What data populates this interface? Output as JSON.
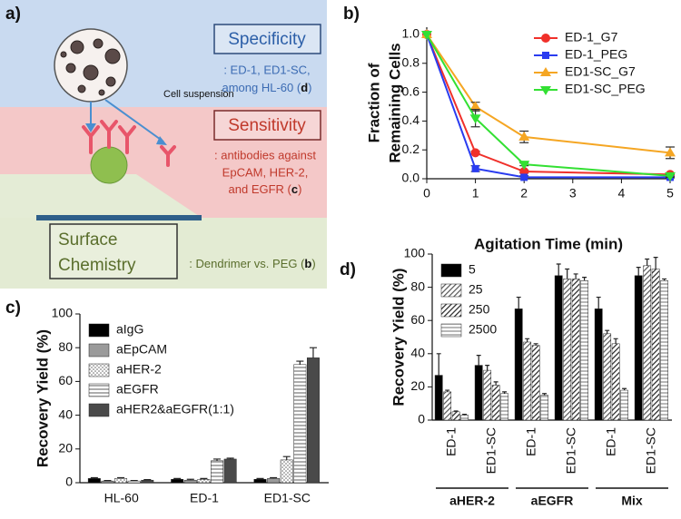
{
  "diagram": {
    "panel": "a)",
    "cell_suspension": "Cell suspension",
    "specificity": {
      "title": "Specificity",
      "lines": [
        ": ED-1, ED1-SC,",
        "among HL-60 ("
      ],
      "ref": "d",
      "end": ")"
    },
    "sensitivity": {
      "title": "Sensitivity",
      "lines": [
        ": antibodies against",
        "EpCAM, HER-2,",
        "and EGFR ("
      ],
      "ref": "c",
      "end": ")"
    },
    "surface": {
      "title": [
        "Surface",
        "Chemistry"
      ],
      "lines": [
        ": Dendrimer vs. PEG ("
      ],
      "ref": "b",
      "end": ")"
    }
  },
  "chart_data": [
    {
      "panel": "b)",
      "type": "line",
      "x": [
        0,
        1,
        2,
        5
      ],
      "xlim": [
        0,
        5
      ],
      "xticks": [
        0,
        1,
        2,
        3,
        4,
        5
      ],
      "ylim": [
        0,
        1.05
      ],
      "yticks": [
        {
          "value": 0,
          "label": "0.0"
        },
        0.2,
        0.4,
        0.6,
        0.8,
        {
          "value": 1,
          "label": "1.0"
        }
      ],
      "xlabel": "Agitation Time (min)",
      "ylabel": [
        "Fraction of",
        "Remaining Cells"
      ],
      "legend": "upper right",
      "series": [
        {
          "name": "ED-1_G7",
          "color": "#f0302a",
          "marker": "circle",
          "values": [
            1,
            0.18,
            0.05,
            0.03
          ],
          "errors": [
            null,
            0.01,
            0.01,
            0.01
          ]
        },
        {
          "name": "ED-1_PEG",
          "color": "#2a3cf0",
          "marker": "square",
          "values": [
            1,
            0.07,
            0.01,
            0.01
          ],
          "errors": [
            null,
            0.02,
            0.01,
            0.005
          ]
        },
        {
          "name": "ED1-SC_G7",
          "color": "#f5a623",
          "marker": "triangle",
          "values": [
            1,
            0.5,
            0.29,
            0.18
          ],
          "errors": [
            null,
            0.03,
            0.04,
            0.04
          ]
        },
        {
          "name": "ED1-SC_PEG",
          "color": "#33e033",
          "marker": "triangle-down",
          "values": [
            1,
            0.42,
            0.1,
            0.02
          ],
          "errors": [
            null,
            0.06,
            0.01,
            0.01
          ]
        }
      ]
    },
    {
      "panel": "c)",
      "type": "bar",
      "categories": [
        "HL-60",
        "ED-1",
        "ED1-SC"
      ],
      "ylim": [
        0,
        100
      ],
      "yticks": [
        0,
        20,
        40,
        60,
        80,
        100
      ],
      "ylabel": [
        "Recovery Yield (%)"
      ],
      "legend": "upper left",
      "series": [
        {
          "name": "aIgG",
          "color": "#000000",
          "values": [
            2.5,
            2,
            2
          ],
          "errors": [
            0.5,
            0.5,
            0.5
          ]
        },
        {
          "name": "aEpCAM",
          "color": "#9a9a9a",
          "values": [
            1,
            1.5,
            2.5
          ],
          "errors": [
            0.3,
            0.5,
            0.5
          ]
        },
        {
          "name": "aHER-2",
          "color": "#666666",
          "pattern": "dots",
          "values": [
            2.5,
            2,
            13.5
          ],
          "errors": [
            0.5,
            0.5,
            2
          ]
        },
        {
          "name": "aEGFR",
          "color": "#8a8a8a",
          "pattern": "hlines",
          "values": [
            1,
            13,
            70
          ],
          "errors": [
            0.3,
            1,
            2
          ]
        },
        {
          "name": "aHER2&aEGFR(1:1)",
          "color": "#4a4a4a",
          "values": [
            1.5,
            14,
            74
          ],
          "errors": [
            0.3,
            0.5,
            6
          ]
        }
      ]
    },
    {
      "panel": "d)",
      "type": "bar",
      "categories": [
        "ED-1",
        "ED1-SC",
        "ED-1",
        "ED1-SC",
        "ED-1",
        "ED1-SC"
      ],
      "groups": [
        "aHER-2",
        "aEGFR",
        "Mix"
      ],
      "ylim": [
        0,
        100
      ],
      "yticks": [
        0,
        20,
        40,
        60,
        80,
        100
      ],
      "ylabel": [
        "Recovery Yield (%)"
      ],
      "legend": "upper left",
      "series": [
        {
          "name": "5",
          "color": "#000000",
          "values": [
            27,
            33,
            67,
            87,
            67,
            87
          ],
          "errors": [
            13,
            6,
            7,
            7,
            7,
            5
          ]
        },
        {
          "name": "25",
          "color": "#555555",
          "pattern": "diag",
          "values": [
            17,
            30,
            47,
            85,
            52,
            93
          ],
          "errors": [
            1,
            3,
            2,
            6,
            2,
            4
          ]
        },
        {
          "name": "250",
          "color": "#222222",
          "pattern": "diag",
          "values": [
            5,
            21,
            45,
            85,
            46,
            91
          ],
          "errors": [
            0.5,
            2,
            1,
            3,
            3,
            7
          ]
        },
        {
          "name": "2500",
          "color": "#999999",
          "pattern": "hlines",
          "values": [
            3,
            16,
            15,
            84,
            18,
            84
          ],
          "errors": [
            0.5,
            1,
            1,
            2,
            1,
            1
          ]
        }
      ]
    }
  ]
}
